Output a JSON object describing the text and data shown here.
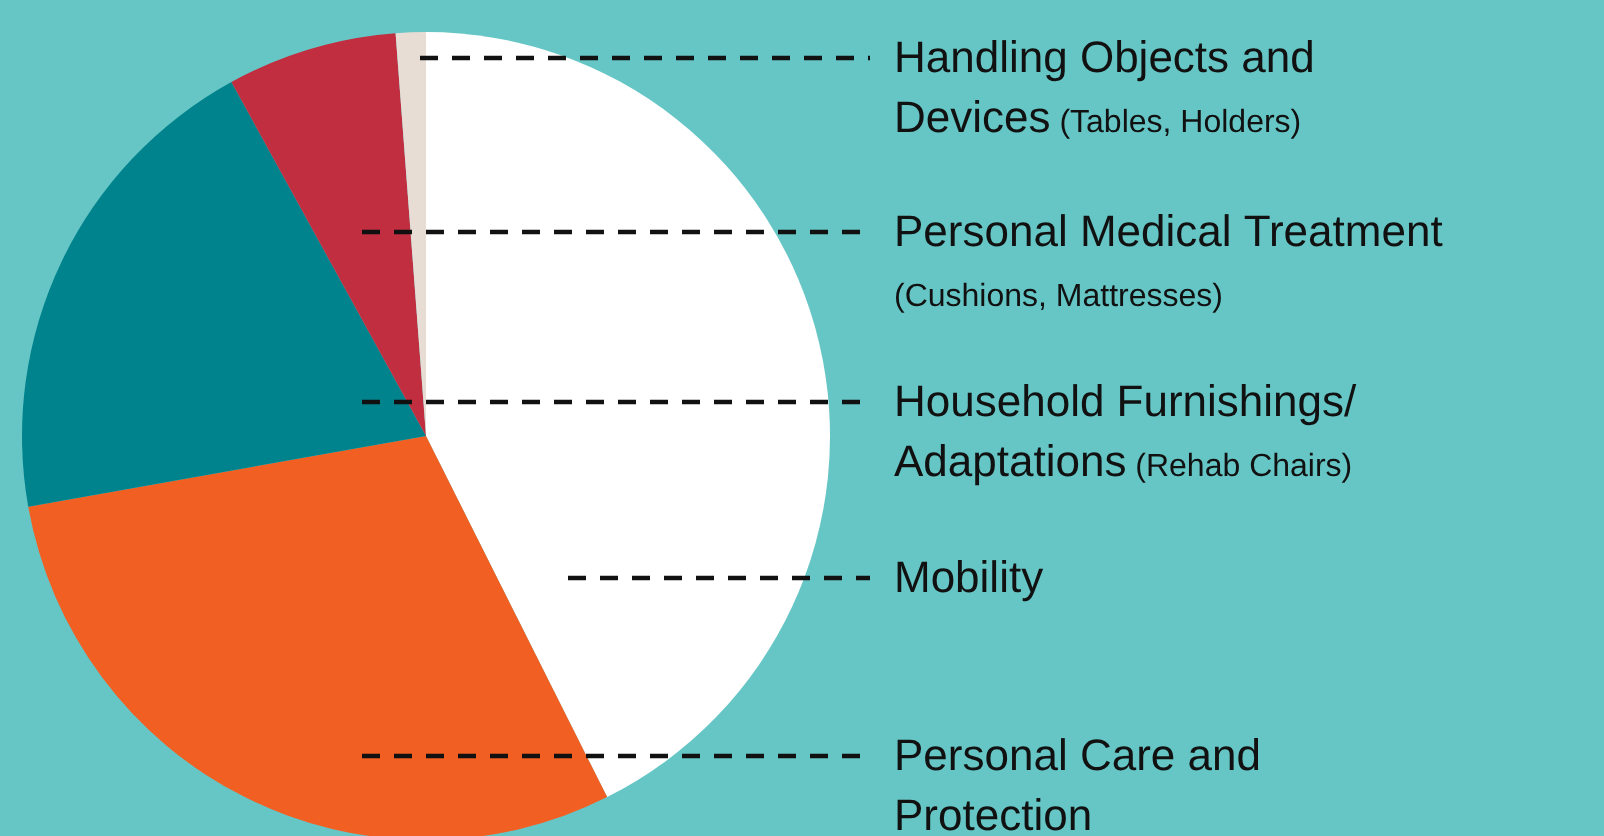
{
  "chart_data": {
    "type": "pie",
    "categories": [
      "Mobility",
      "Personal Care and Protection",
      "Household Furnishings/ Adaptations (Rehab Chairs)",
      "Personal Medical Treatment (Cushions, Mattresses)",
      "Handling Objects and Devices (Tables, Holders)"
    ],
    "values": [
      42.6,
      29.6,
      19.8,
      6.8,
      1.2
    ],
    "colors": [
      "#ffffff",
      "#f15f22",
      "#00838c",
      "#c02e40",
      "#e8ddd5"
    ]
  }
}
